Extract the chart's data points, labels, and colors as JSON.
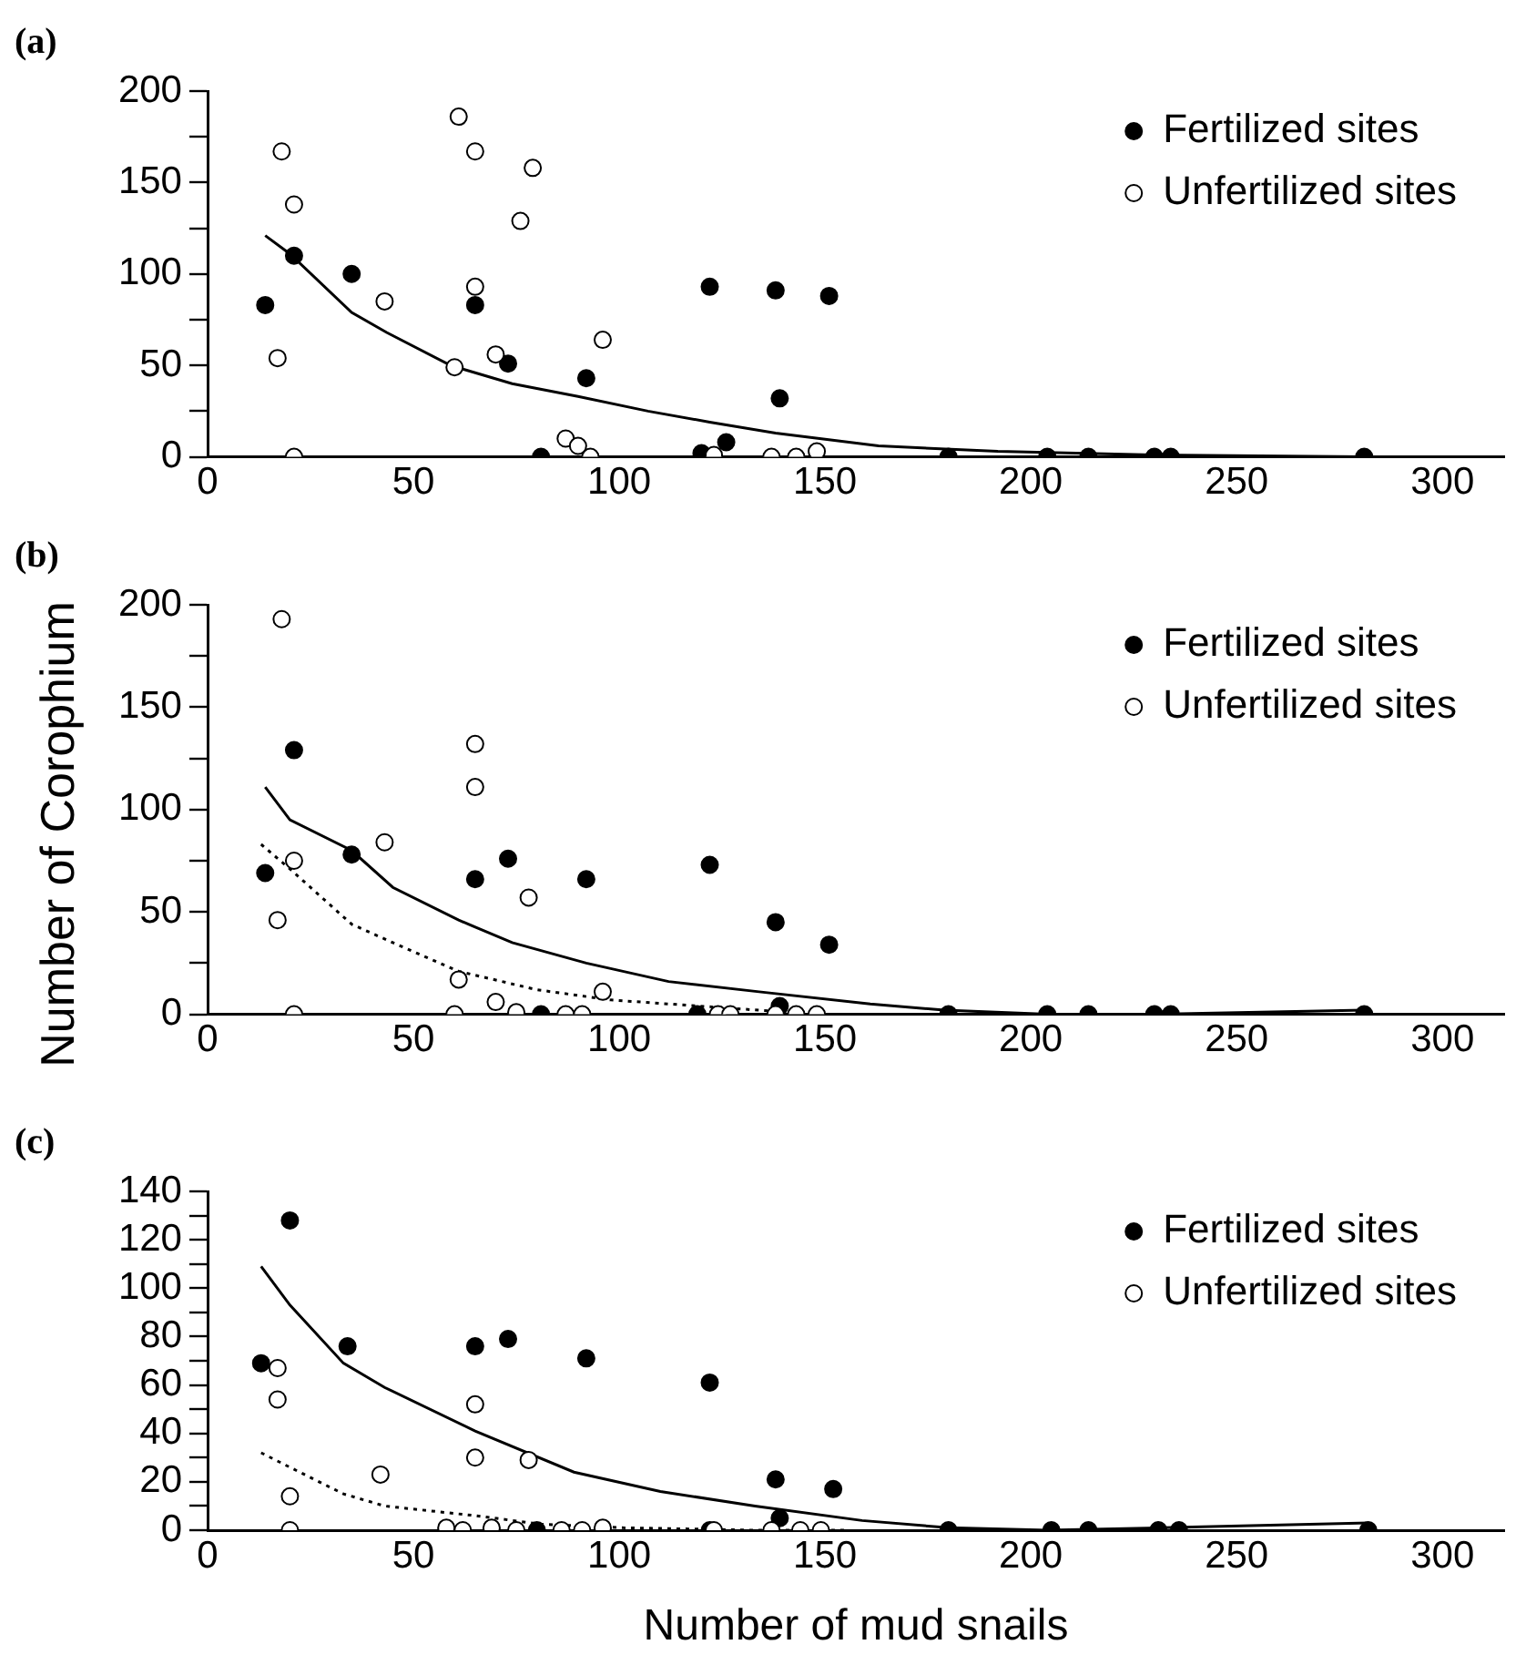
{
  "chart_data": [
    {
      "type": "scatter",
      "title": "(a)",
      "legend": "top right",
      "marker": "circle",
      "xlim": [
        0,
        315
      ],
      "xticks": [
        0,
        50,
        100,
        150,
        200,
        250,
        300
      ],
      "ylim": [
        0,
        200
      ],
      "yticks": [
        0,
        {
          "value": 25,
          "label": null
        },
        50,
        {
          "value": 75,
          "label": null
        },
        100,
        {
          "value": 125,
          "label": null
        },
        150,
        {
          "value": 175,
          "label": null
        },
        200
      ],
      "series": [
        {
          "name": "Fertilized sites",
          "type": "scatter",
          "color": "#000000",
          "x": [
            14,
            21,
            35,
            65,
            73,
            81,
            92,
            122,
            120,
            126,
            138,
            151,
            139,
            180,
            204,
            214,
            230,
            234,
            281
          ],
          "values": [
            83,
            110,
            100,
            83,
            51,
            0,
            43,
            93,
            2,
            8,
            91,
            88,
            32,
            0,
            0,
            0,
            0,
            0,
            0
          ]
        },
        {
          "name": "Unfertilized sites",
          "type": "scatter",
          "color": "#ffffff",
          "x": [
            18,
            21,
            17,
            21,
            61,
            65,
            79,
            76,
            65,
            43,
            60,
            70,
            87,
            90,
            93,
            96,
            123,
            137,
            143,
            148
          ],
          "values": [
            167,
            138,
            54,
            0,
            186,
            167,
            158,
            129,
            93,
            85,
            49,
            56,
            10,
            6,
            0,
            64,
            1,
            0,
            0,
            3
          ]
        },
        {
          "type": "line",
          "color": "#000000",
          "line_style": "solid",
          "marker": "none",
          "x": [
            14,
            20,
            35,
            43.5,
            59,
            74,
            90,
            107,
            122,
            138,
            163,
            192,
            230,
            281
          ],
          "values": [
            121,
            111,
            79,
            68,
            50,
            40,
            33,
            25,
            19,
            13,
            6,
            3,
            1,
            0
          ]
        }
      ]
    },
    {
      "type": "scatter",
      "title": "(b)",
      "ylabel": "Number of Corophium",
      "legend": "top right",
      "marker": "circle",
      "xlim": [
        0,
        315
      ],
      "xticks": [
        0,
        50,
        100,
        150,
        200,
        250,
        300
      ],
      "ylim": [
        0,
        200
      ],
      "yticks": [
        0,
        {
          "value": 25,
          "label": null
        },
        50,
        {
          "value": 75,
          "label": null
        },
        100,
        {
          "value": 125,
          "label": null
        },
        150,
        {
          "value": 175,
          "label": null
        },
        200
      ],
      "series": [
        {
          "name": "Fertilized sites",
          "type": "scatter",
          "color": "#000000",
          "x": [
            14,
            21,
            35,
            65,
            73,
            81,
            92,
            122,
            119,
            138,
            151,
            139,
            180,
            204,
            214,
            230,
            234,
            281
          ],
          "values": [
            69,
            129,
            78,
            66,
            76,
            0,
            66,
            73,
            0,
            45,
            34,
            4,
            0,
            0,
            0,
            0,
            0,
            0
          ]
        },
        {
          "name": "Unfertilized sites",
          "type": "scatter",
          "color": "#ffffff",
          "x": [
            18,
            17,
            21,
            21,
            43,
            65,
            65,
            61,
            60,
            70,
            75,
            78,
            87,
            91,
            96,
            124,
            127,
            138,
            143,
            148
          ],
          "values": [
            193,
            46,
            75,
            0,
            84,
            132,
            111,
            17,
            0,
            6,
            1,
            57,
            0,
            0,
            11,
            0,
            0,
            0,
            0,
            0
          ]
        },
        {
          "type": "line",
          "color": "#000000",
          "line_style": "solid",
          "marker": "none",
          "x": [
            14,
            20,
            35,
            45,
            61,
            74,
            92,
            112,
            134,
            161,
            179,
            204,
            230,
            281
          ],
          "values": [
            111,
            95,
            80,
            62,
            46,
            35,
            25,
            16,
            11,
            5,
            2,
            0,
            0,
            2
          ]
        },
        {
          "type": "line",
          "color": "#000000",
          "line_style": "dotted",
          "marker": "none",
          "x": [
            13,
            20,
            35,
            45,
            61,
            80,
            98,
            134,
            150
          ],
          "values": [
            83,
            71,
            44,
            35,
            21,
            12,
            7,
            2,
            0
          ]
        }
      ]
    },
    {
      "type": "scatter",
      "title": "(c)",
      "xlabel": "Number of mud snails",
      "legend": "top right",
      "marker": "circle",
      "xlim": [
        0,
        315
      ],
      "xticks": [
        0,
        50,
        100,
        150,
        200,
        250,
        300
      ],
      "ylim": [
        0,
        140
      ],
      "yticks": [
        0,
        {
          "value": 10,
          "label": null
        },
        20,
        {
          "value": 30,
          "label": null
        },
        40,
        {
          "value": 50,
          "label": null
        },
        60,
        {
          "value": 70,
          "label": null
        },
        80,
        {
          "value": 90,
          "label": null
        },
        100,
        {
          "value": 110,
          "label": null
        },
        120,
        {
          "value": 130,
          "label": null
        },
        140
      ],
      "series": [
        {
          "name": "Fertilized sites",
          "type": "scatter",
          "color": "#000000",
          "x": [
            13,
            20,
            34,
            65,
            73,
            80,
            92,
            122,
            122,
            138,
            152,
            139,
            180,
            205,
            214,
            231,
            236,
            282
          ],
          "values": [
            69,
            128,
            76,
            76,
            79,
            0,
            71,
            61,
            0,
            21,
            17,
            5,
            0,
            0,
            0,
            0,
            0,
            0
          ]
        },
        {
          "name": "Unfertilized sites",
          "type": "scatter",
          "color": "#ffffff",
          "x": [
            17,
            17,
            20,
            20,
            42,
            65,
            65,
            58,
            62,
            69,
            75,
            78,
            86,
            91,
            96,
            123,
            137,
            144,
            149
          ],
          "values": [
            67,
            54,
            14,
            0,
            23,
            52,
            30,
            1,
            0,
            1,
            0,
            29,
            0,
            0,
            1,
            0,
            0,
            0,
            0
          ]
        },
        {
          "type": "line",
          "color": "#000000",
          "line_style": "solid",
          "marker": "none",
          "x": [
            13,
            20,
            33,
            43,
            65,
            89,
            110,
            133,
            159,
            180,
            204,
            232,
            282
          ],
          "values": [
            109,
            93,
            69,
            59,
            41,
            24,
            16,
            10,
            4,
            1,
            0,
            1,
            3
          ]
        },
        {
          "type": "line",
          "color": "#000000",
          "line_style": "dotted",
          "marker": "none",
          "x": [
            13,
            20,
            33,
            43,
            65,
            81,
            101,
            133,
            155
          ],
          "values": [
            32,
            26,
            15,
            10,
            6,
            2.5,
            1,
            0,
            0
          ]
        }
      ]
    }
  ]
}
